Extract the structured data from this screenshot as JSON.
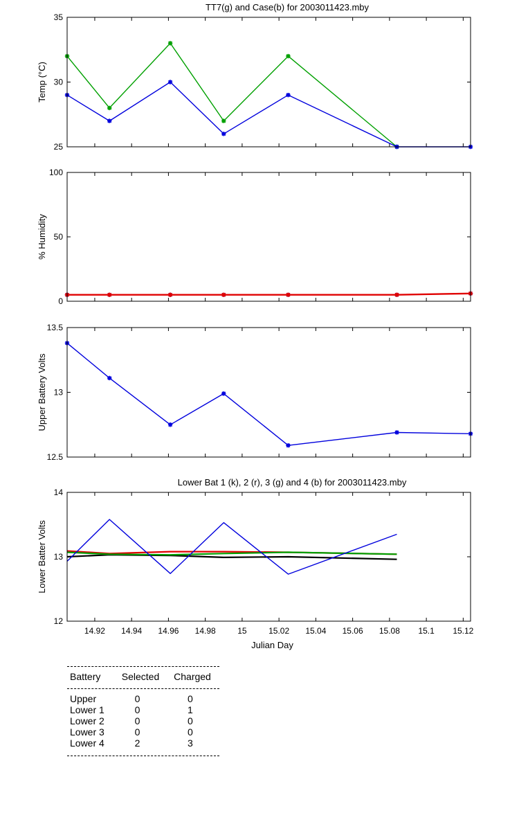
{
  "chart_data": [
    {
      "type": "line",
      "title": "TT7(g) and Case(b) for 2003011423.mby",
      "ylabel": "Temp  (°C)",
      "xlabel": "",
      "xlim": [
        14.905,
        15.124
      ],
      "ylim": [
        25,
        35
      ],
      "yticks": [
        25,
        30,
        35
      ],
      "series": [
        {
          "color": "#00a000",
          "marker": "*",
          "x": [
            14.905,
            14.928,
            14.961,
            14.99,
            15.025,
            15.084
          ],
          "y": [
            32,
            28,
            33,
            27,
            32,
            25
          ]
        },
        {
          "color": "#0000dd",
          "marker": "*",
          "x": [
            14.905,
            14.928,
            14.961,
            14.99,
            15.025,
            15.084,
            15.124
          ],
          "y": [
            29,
            27,
            30,
            26,
            29,
            25,
            25
          ]
        }
      ]
    },
    {
      "type": "line",
      "title": "",
      "ylabel": "% Humidity",
      "xlabel": "",
      "xlim": [
        14.905,
        15.124
      ],
      "ylim": [
        0,
        100
      ],
      "yticks": [
        0,
        50,
        100
      ],
      "series": [
        {
          "color": "#0000dd",
          "marker": "*",
          "x": [
            14.905,
            14.928,
            14.961,
            14.99,
            15.025,
            15.084,
            15.124
          ],
          "y": [
            5,
            5,
            5,
            5,
            5,
            5,
            6
          ]
        },
        {
          "color": "#e00000",
          "marker": "*",
          "x": [
            14.905,
            14.928,
            14.961,
            14.99,
            15.025,
            15.084,
            15.124
          ],
          "y": [
            5,
            5,
            5,
            5,
            5,
            5,
            6
          ]
        }
      ]
    },
    {
      "type": "line",
      "title": "",
      "ylabel": "Upper Battery Volts",
      "xlabel": "",
      "xlim": [
        14.905,
        15.124
      ],
      "ylim": [
        12.5,
        13.5
      ],
      "yticks": [
        12.5,
        13,
        13.5
      ],
      "series": [
        {
          "color": "#0000dd",
          "marker": "*",
          "x": [
            14.905,
            14.928,
            14.961,
            14.99,
            15.025,
            15.084,
            15.124
          ],
          "y": [
            13.38,
            13.11,
            12.75,
            12.99,
            12.59,
            12.69,
            12.68
          ]
        }
      ]
    },
    {
      "type": "line",
      "title": "Lower Bat 1 (k), 2 (r), 3 (g) and 4 (b) for 2003011423.mby",
      "ylabel": "Lower Batter Volts",
      "xlabel": "Julian Day",
      "xlim": [
        14.905,
        15.124
      ],
      "ylim": [
        12,
        14
      ],
      "yticks": [
        12,
        13,
        14
      ],
      "xticks": [
        14.92,
        14.94,
        14.96,
        14.98,
        15,
        15.02,
        15.04,
        15.06,
        15.08,
        15.1,
        15.12
      ],
      "series": [
        {
          "color": "#000000",
          "marker": "",
          "x": [
            14.905,
            14.928,
            14.961,
            14.99,
            15.025,
            15.084
          ],
          "y": [
            13.0,
            13.03,
            13.02,
            12.99,
            13.0,
            12.96
          ]
        },
        {
          "color": "#e00000",
          "marker": "",
          "x": [
            14.905,
            14.928,
            14.961,
            14.99,
            15.025,
            15.084
          ],
          "y": [
            13.09,
            13.05,
            13.08,
            13.08,
            13.07,
            13.04
          ]
        },
        {
          "color": "#00a000",
          "marker": "",
          "x": [
            14.905,
            14.928,
            14.961,
            14.99,
            15.025,
            15.084
          ],
          "y": [
            13.07,
            13.04,
            13.03,
            13.05,
            13.07,
            13.04
          ]
        },
        {
          "color": "#0000dd",
          "marker": "",
          "x": [
            14.905,
            14.928,
            14.961,
            14.99,
            15.025,
            15.084
          ],
          "y": [
            12.93,
            13.58,
            12.74,
            13.53,
            12.73,
            13.35
          ]
        }
      ]
    }
  ],
  "battery_table": {
    "headers": [
      "Battery",
      "Selected",
      "Charged"
    ],
    "rows": [
      {
        "battery": "Upper",
        "selected": "0",
        "charged": "0"
      },
      {
        "battery": "Lower 1",
        "selected": "0",
        "charged": "1"
      },
      {
        "battery": "Lower 2",
        "selected": "0",
        "charged": "0"
      },
      {
        "battery": "Lower 3",
        "selected": "0",
        "charged": "0"
      },
      {
        "battery": "Lower 4",
        "selected": "2",
        "charged": "3"
      }
    ]
  }
}
